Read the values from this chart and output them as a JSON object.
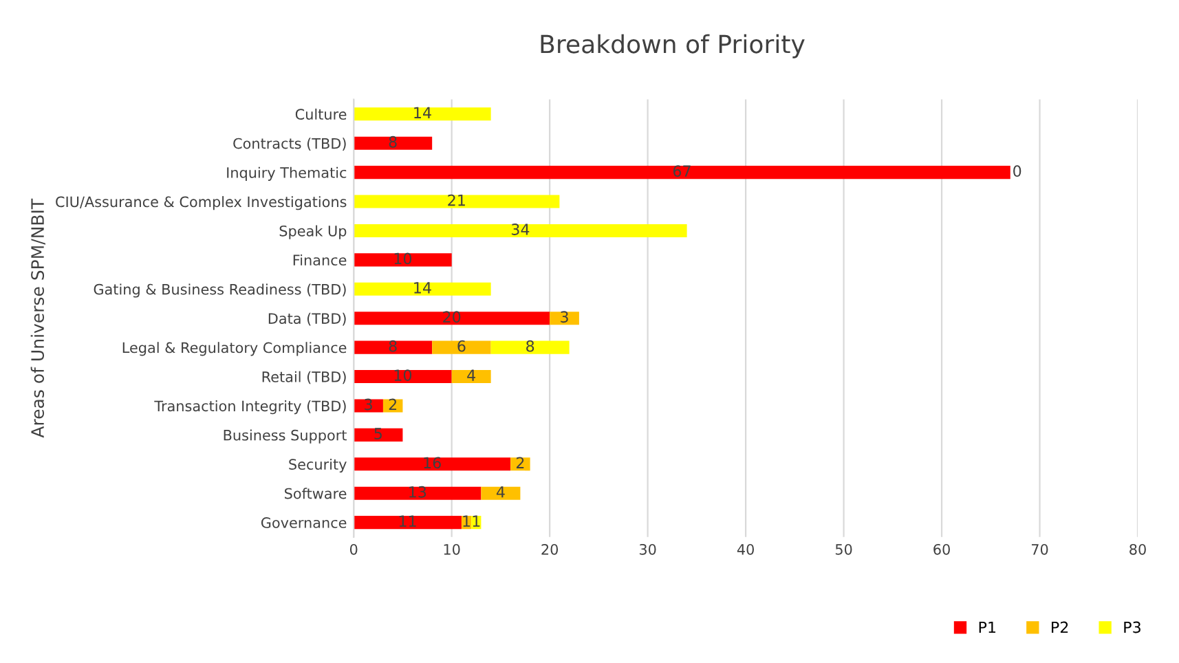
{
  "chart_data": {
    "type": "bar",
    "orientation": "horizontal",
    "stacked": true,
    "title": "Breakdown of Priority",
    "ylabel": "Areas of Universe SPM/NBIT",
    "categories": [
      "Culture",
      "Contracts (TBD)",
      "Inquiry Thematic",
      "CIU/Assurance & Complex Investigations",
      "Speak Up",
      "Finance",
      "Gating & Business Readiness (TBD)",
      "Data (TBD)",
      "Legal & Regulatory Compliance",
      "Retail (TBD)",
      "Transaction Integrity (TBD)",
      "Business Support",
      "Security",
      "Software",
      "Governance"
    ],
    "series": [
      {
        "name": "P1",
        "color": "#ff0000",
        "values": [
          null,
          8,
          67,
          null,
          null,
          10,
          null,
          20,
          8,
          10,
          3,
          5,
          16,
          13,
          11
        ]
      },
      {
        "name": "P2",
        "color": "#ffc000",
        "values": [
          null,
          null,
          0,
          null,
          null,
          null,
          null,
          3,
          6,
          4,
          2,
          null,
          2,
          4,
          1
        ]
      },
      {
        "name": "P3",
        "color": "#ffff00",
        "values": [
          14,
          null,
          null,
          21,
          34,
          null,
          14,
          null,
          8,
          null,
          null,
          null,
          null,
          null,
          1
        ]
      }
    ],
    "data_labels": true,
    "xlim": [
      0,
      80
    ],
    "xticks": [
      0,
      10,
      20,
      30,
      40,
      50,
      60,
      70,
      80
    ],
    "grid": "x",
    "legend": "bottom right"
  }
}
